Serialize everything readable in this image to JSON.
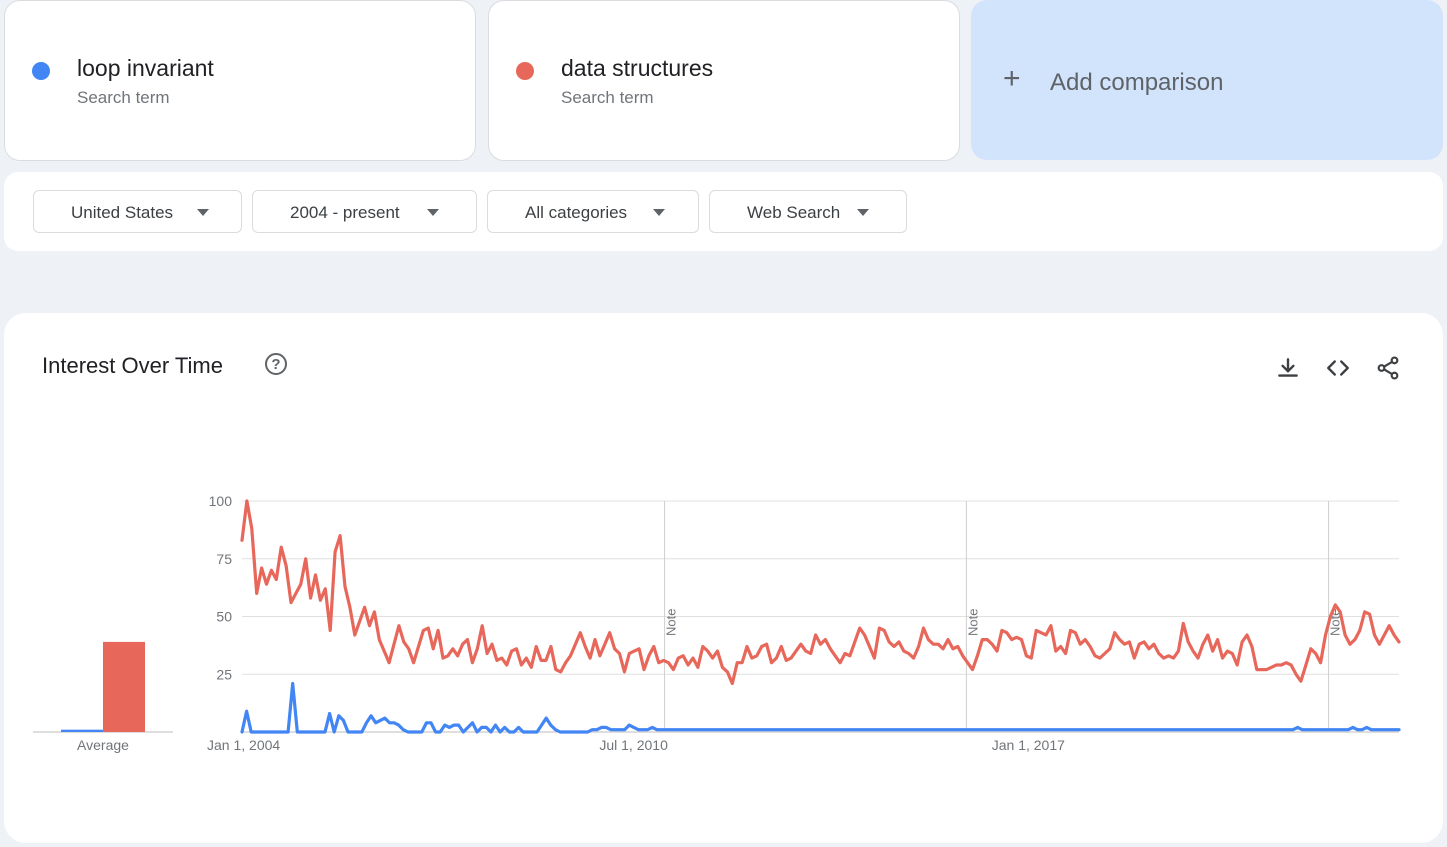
{
  "terms": [
    {
      "name": "loop invariant",
      "subtitle": "Search term",
      "color": "#4285f4"
    },
    {
      "name": "data structures",
      "subtitle": "Search term",
      "color": "#e8675b"
    }
  ],
  "add_comparison": {
    "icon": "plus-icon",
    "label": "Add comparison"
  },
  "filters": {
    "region": "United States",
    "time_range": "2004 - present",
    "category": "All categories",
    "search_type": "Web Search"
  },
  "chart_panel": {
    "title": "Interest Over Time",
    "icons": [
      "help-icon",
      "download-icon",
      "embed-icon",
      "share-icon"
    ],
    "average_label": "Average"
  },
  "chart_data": {
    "type": "line",
    "y_ticks": [
      "100",
      "75",
      "50",
      "25"
    ],
    "ylim": [
      0,
      100
    ],
    "x_tick_labels": [
      "Jan 1, 2004",
      "Jul 1, 2010",
      "Jan 1, 2017"
    ],
    "notes": [
      {
        "label": "Note",
        "date": "2011-01"
      },
      {
        "label": "Note",
        "date": "2016-01"
      },
      {
        "label": "Note",
        "date": "2022-01"
      }
    ],
    "x_range": [
      "2004-01",
      "2023-03"
    ],
    "grid": true,
    "averages": [
      {
        "series": "loop invariant",
        "value": 1
      },
      {
        "series": "data structures",
        "value": 39
      }
    ],
    "series": [
      {
        "name": "loop invariant",
        "color": "#4285f4",
        "values": [
          0,
          9,
          0,
          0,
          0,
          0,
          0,
          0,
          0,
          0,
          0,
          21,
          0,
          0,
          0,
          0,
          0,
          0,
          0,
          8,
          0,
          7,
          5,
          0,
          0,
          0,
          0,
          4,
          7,
          4,
          5,
          6,
          4,
          4,
          3,
          1,
          0,
          0,
          0,
          0,
          4,
          4,
          0,
          0,
          3,
          2,
          3,
          3,
          0,
          2,
          4,
          0,
          2,
          2,
          0,
          3,
          0,
          2,
          0,
          0,
          2,
          0,
          0,
          0,
          0,
          3,
          6,
          3,
          1,
          0,
          0,
          0,
          0,
          0,
          0,
          0,
          1,
          1,
          2,
          2,
          1,
          1,
          1,
          1,
          3,
          2,
          1,
          1,
          1,
          2,
          1,
          1,
          1,
          1,
          1,
          1,
          1,
          1,
          1,
          1,
          1,
          1,
          1,
          1,
          1,
          1,
          1,
          1,
          1,
          1,
          1,
          1,
          1,
          1,
          1,
          1,
          1,
          1,
          1,
          1,
          1,
          1,
          1,
          1,
          1,
          1,
          1,
          1,
          1,
          1,
          1,
          1,
          1,
          1,
          1,
          1,
          1,
          1,
          1,
          1,
          1,
          1,
          1,
          1,
          1,
          1,
          1,
          1,
          1,
          1,
          1,
          1,
          1,
          1,
          1,
          1,
          1,
          1,
          1,
          1,
          1,
          1,
          1,
          1,
          1,
          1,
          1,
          1,
          1,
          1,
          1,
          1,
          1,
          1,
          1,
          1,
          1,
          1,
          1,
          1,
          1,
          1,
          1,
          1,
          1,
          1,
          1,
          1,
          1,
          1,
          1,
          1,
          1,
          1,
          1,
          1,
          1,
          1,
          1,
          1,
          1,
          1,
          1,
          1,
          1,
          1,
          1,
          1,
          1,
          1,
          1,
          1,
          1,
          1,
          1,
          1,
          1,
          1,
          1,
          1,
          1,
          1,
          1,
          1,
          1,
          1,
          1,
          1,
          1,
          2,
          1,
          1,
          1,
          1,
          1,
          1,
          1,
          1,
          1,
          1,
          1,
          2,
          1,
          1,
          2,
          1,
          1,
          1,
          1,
          1,
          1,
          1
        ]
      },
      {
        "name": "data structures",
        "color": "#e8675b",
        "values": [
          83,
          100,
          88,
          60,
          71,
          64,
          70,
          66,
          80,
          72,
          56,
          60,
          64,
          75,
          58,
          68,
          57,
          62,
          44,
          78,
          85,
          63,
          54,
          42,
          48,
          54,
          46,
          52,
          40,
          35,
          30,
          38,
          46,
          39,
          36,
          30,
          37,
          44,
          45,
          36,
          44,
          32,
          33,
          36,
          33,
          38,
          40,
          30,
          36,
          46,
          34,
          38,
          31,
          32,
          29,
          35,
          36,
          29,
          32,
          28,
          37,
          31,
          31,
          37,
          27,
          26,
          30,
          33,
          38,
          43,
          37,
          32,
          40,
          33,
          38,
          43,
          36,
          34,
          26,
          34,
          35,
          36,
          27,
          33,
          37,
          30,
          31,
          30,
          27,
          32,
          33,
          29,
          32,
          28,
          37,
          35,
          32,
          35,
          28,
          26,
          21,
          30,
          30,
          37,
          32,
          33,
          37,
          38,
          30,
          32,
          37,
          31,
          32,
          35,
          38,
          35,
          34,
          42,
          38,
          40,
          36,
          33,
          30,
          34,
          33,
          39,
          45,
          42,
          37,
          32,
          45,
          44,
          39,
          37,
          39,
          35,
          34,
          32,
          37,
          45,
          40,
          38,
          38,
          36,
          40,
          36,
          37,
          33,
          30,
          27,
          33,
          40,
          40,
          38,
          35,
          44,
          43,
          40,
          41,
          40,
          33,
          32,
          44,
          43,
          42,
          46,
          35,
          37,
          34,
          44,
          43,
          38,
          40,
          37,
          33,
          32,
          34,
          36,
          43,
          40,
          38,
          39,
          32,
          38,
          39,
          36,
          38,
          34,
          32,
          33,
          32,
          35,
          47,
          39,
          35,
          32,
          38,
          42,
          35,
          40,
          32,
          35,
          34,
          29,
          39,
          42,
          37,
          27,
          27,
          27,
          28,
          29,
          29,
          30,
          29,
          25,
          22,
          29,
          36,
          34,
          30,
          42,
          50,
          55,
          52,
          42,
          38,
          40,
          44,
          52,
          51,
          42,
          38,
          42,
          46,
          42,
          39
        ]
      }
    ]
  }
}
